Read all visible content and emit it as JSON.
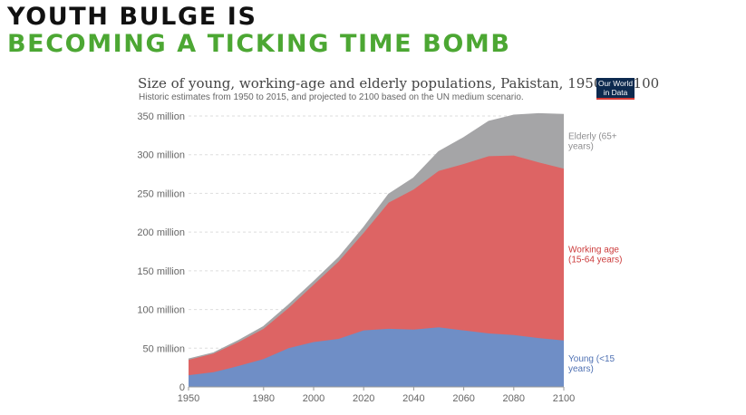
{
  "headline": {
    "line1": "YOUTH BULGE IS",
    "line2": "BECOMING A TICKING TIME BOMB",
    "line1_color": "#111111",
    "line2_color": "#4ca733"
  },
  "logo": {
    "line1": "Our World",
    "line2": "in Data"
  },
  "chart_data": {
    "type": "area",
    "stacked": true,
    "title": "Size of young, working-age and elderly populations, Pakistan, 1950 to 2100",
    "subtitle": "Historic estimates from 1950 to 2015, and projected to 2100 based on the UN medium scenario.",
    "xlabel": "",
    "ylabel": "",
    "xlim": [
      1950,
      2100
    ],
    "ylim": [
      0,
      350
    ],
    "grid": true,
    "x_ticks": [
      1950,
      1980,
      2000,
      2020,
      2040,
      2060,
      2080,
      2100
    ],
    "x_tick_labels": [
      "1950",
      "1980",
      "2000",
      "2020",
      "2040",
      "2060",
      "2080",
      "2100"
    ],
    "y_ticks": [
      0,
      50,
      100,
      150,
      200,
      250,
      300,
      350
    ],
    "y_tick_labels": [
      "0",
      "50 million",
      "100 million",
      "150 million",
      "200 million",
      "250 million",
      "300 million",
      "350 million"
    ],
    "x": [
      1950,
      1960,
      1970,
      1980,
      1990,
      2000,
      2010,
      2020,
      2030,
      2040,
      2050,
      2060,
      2070,
      2080,
      2090,
      2100
    ],
    "series": [
      {
        "name": "Young (<15 years)",
        "label_lines": [
          "Young (<15",
          "years)"
        ],
        "color": "#6f8ec6",
        "label_color": "#4f71b3",
        "values": [
          15,
          19,
          27,
          36,
          50,
          58,
          62,
          73,
          75,
          74,
          77,
          73,
          69,
          67,
          63,
          60
        ]
      },
      {
        "name": "Working age (15-64 years)",
        "label_lines": [
          "Working age",
          "(15-64 years)"
        ],
        "color": "#dd6464",
        "label_color": "#cc3b3b",
        "values": [
          20,
          24,
          31,
          39,
          52,
          74,
          100,
          126,
          163,
          181,
          202,
          215,
          229,
          232,
          227,
          222
        ]
      },
      {
        "name": "Elderly (65+ years)",
        "label_lines": [
          "Elderly (65+",
          "years)"
        ],
        "color": "#a5a5a7",
        "label_color": "#8e8e90",
        "values": [
          1,
          1,
          2,
          3,
          4,
          4,
          5,
          7,
          11,
          15,
          25,
          34,
          45,
          52,
          63,
          70
        ]
      }
    ]
  }
}
